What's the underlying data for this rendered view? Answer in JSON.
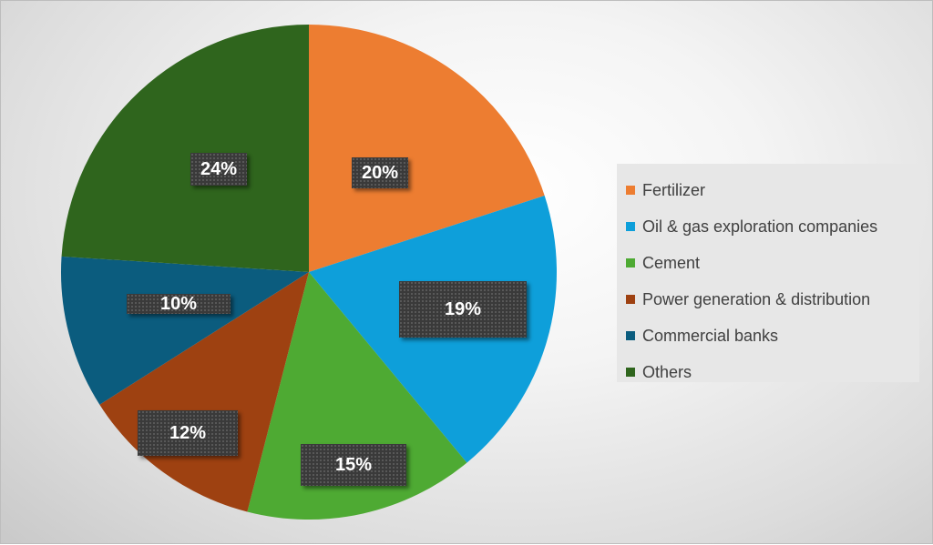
{
  "chart_data": {
    "type": "pie",
    "start_angle_deg": 0,
    "direction": "clockwise",
    "legend_position": "right",
    "slices": [
      {
        "label": "Fertilizer",
        "value": 20,
        "value_label": "20%",
        "color": "#ED7D31"
      },
      {
        "label": "Oil & gas exploration companies",
        "value": 19,
        "value_label": "19%",
        "color": "#0E9FDA"
      },
      {
        "label": "Cement",
        "value": 15,
        "value_label": "15%",
        "color": "#4EAA33"
      },
      {
        "label": "Power generation & distribution",
        "value": 12,
        "value_label": "12%",
        "color": "#9E4111"
      },
      {
        "label": "Commercial banks",
        "value": 10,
        "value_label": "10%",
        "color": "#0B5C7E"
      },
      {
        "label": "Others",
        "value": 24,
        "value_label": "24%",
        "color": "#2F651D"
      }
    ]
  }
}
